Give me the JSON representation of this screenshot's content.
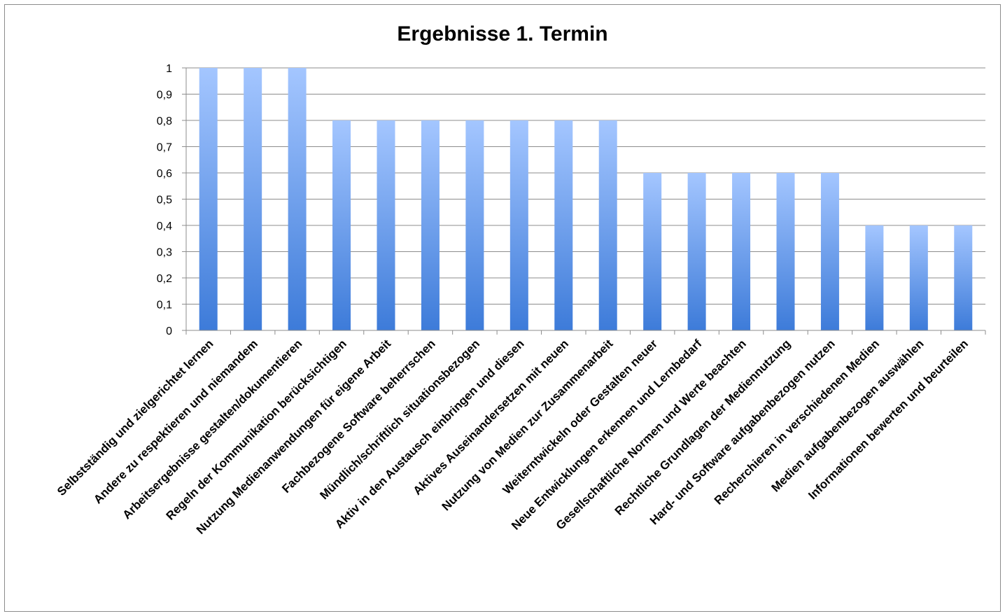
{
  "chart_data": {
    "type": "bar",
    "title": "Ergebnisse 1. Termin",
    "xlabel": "",
    "ylabel": "",
    "ylim": [
      0,
      1
    ],
    "y_ticks": [
      "0",
      "0,1",
      "0,2",
      "0,3",
      "0,4",
      "0,5",
      "0,6",
      "0,7",
      "0,8",
      "0,9",
      "1"
    ],
    "grid": true,
    "legend": "none",
    "bar_color_top": "#a4c6ff",
    "bar_color_bottom": "#3d7bd9",
    "categories": [
      "Selbstständig und zielgerichtet lernen",
      "Andere zu respektieren und niemandem",
      "Arbeitsergebnisse gestalten/dokumentieren",
      "Regeln der Kommunikation berücksichtigen",
      "Nutzung Medienanwendungen für eigene Arbeit",
      "Fachbezogene Software beherrschen",
      "Mündlich/schriftlich situationsbezogen",
      "Aktiv in den Austausch einbringen und diesen",
      "Aktives Auseinandersetzen mit neuen",
      "Nutzung von Medien zur Zusammenarbeit",
      "Weiterntwickeln oder Gestalten neuer",
      "Neue Entwicklungen erkennen und Lernbedarf",
      "Gesellschaftliche Normen und Werte beachten",
      "Rechtliche Grundlagen der Mediennutzung",
      "Hard- und Software aufgabenbezogen nutzen",
      "Recherchieren in verschiedenen Medien",
      "Medien aufgabenbezogen auswählen",
      "Informationen bewerten und beurteilen"
    ],
    "values": [
      1,
      1,
      1,
      0.8,
      0.8,
      0.8,
      0.8,
      0.8,
      0.8,
      0.8,
      0.6,
      0.6,
      0.6,
      0.6,
      0.6,
      0.4,
      0.4,
      0.4
    ]
  }
}
